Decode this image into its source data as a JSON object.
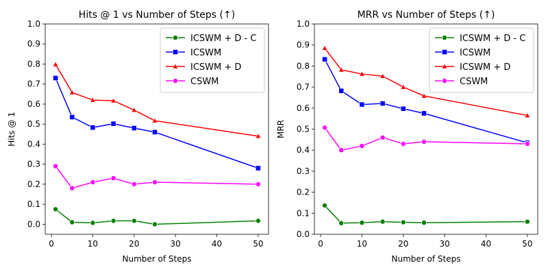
{
  "chart_data": [
    {
      "type": "line",
      "title": "Hits @ 1 vs Number of Steps (↑)",
      "xlabel": "Number of Steps",
      "ylabel": "Hits @ 1",
      "xlim": [
        -1.5,
        52.5
      ],
      "ylim": [
        -0.05,
        1.0
      ],
      "xticks": [
        0,
        10,
        20,
        30,
        40,
        50
      ],
      "xtick_labels": [
        "0",
        "10",
        "20",
        "30",
        "40",
        "50"
      ],
      "yticks": [
        0.0,
        0.1,
        0.2,
        0.3,
        0.4,
        0.5,
        0.6,
        0.7,
        0.8,
        0.9,
        1.0
      ],
      "ytick_labels": [
        "0.0",
        "0.1",
        "0.2",
        "0.3",
        "0.4",
        "0.5",
        "0.6",
        "0.7",
        "0.8",
        "0.9",
        "1.0"
      ],
      "legend_position": "top-right",
      "x": [
        1,
        5,
        10,
        15,
        20,
        25,
        50
      ],
      "series": [
        {
          "name": "ICSWM + D - C",
          "color": "#008000",
          "marker": "circle",
          "values": [
            0.075,
            0.01,
            0.007,
            0.017,
            0.017,
            0.0,
            0.017
          ]
        },
        {
          "name": "ICSWM",
          "color": "#0000ff",
          "marker": "square",
          "values": [
            0.73,
            0.535,
            0.483,
            0.502,
            0.48,
            0.46,
            0.28
          ]
        },
        {
          "name": "ICSWM + D",
          "color": "#ff0000",
          "marker": "triangle",
          "values": [
            0.798,
            0.658,
            0.62,
            0.617,
            0.57,
            0.517,
            0.44
          ]
        },
        {
          "name": "CSWM",
          "color": "#ff00ff",
          "marker": "circle",
          "values": [
            0.29,
            0.18,
            0.21,
            0.23,
            0.2,
            0.21,
            0.2
          ]
        }
      ]
    },
    {
      "type": "line",
      "title": "MRR vs Number of Steps (↑)",
      "xlabel": "Number of Steps",
      "ylabel": "MRR",
      "xlim": [
        -1.5,
        52.5
      ],
      "ylim": [
        0.0,
        1.0
      ],
      "xticks": [
        0,
        10,
        20,
        30,
        40,
        50
      ],
      "xtick_labels": [
        "0",
        "10",
        "20",
        "30",
        "40",
        "50"
      ],
      "yticks": [
        0.0,
        0.1,
        0.2,
        0.3,
        0.4,
        0.5,
        0.6,
        0.7,
        0.8,
        0.9,
        1.0
      ],
      "ytick_labels": [
        "0.0",
        "0.1",
        "0.2",
        "0.3",
        "0.4",
        "0.5",
        "0.6",
        "0.7",
        "0.8",
        "0.9",
        "1.0"
      ],
      "legend_position": "top-right",
      "x": [
        1,
        5,
        10,
        15,
        20,
        25,
        50
      ],
      "series": [
        {
          "name": "ICSWM + D - C",
          "color": "#008000",
          "marker": "circle",
          "values": [
            0.137,
            0.053,
            0.055,
            0.06,
            0.057,
            0.055,
            0.06
          ]
        },
        {
          "name": "ICSWM",
          "color": "#0000ff",
          "marker": "square",
          "values": [
            0.832,
            0.682,
            0.617,
            0.622,
            0.597,
            0.575,
            0.435
          ]
        },
        {
          "name": "ICSWM + D",
          "color": "#ff0000",
          "marker": "triangle",
          "values": [
            0.885,
            0.782,
            0.762,
            0.752,
            0.7,
            0.658,
            0.565
          ]
        },
        {
          "name": "CSWM",
          "color": "#ff00ff",
          "marker": "circle",
          "values": [
            0.507,
            0.4,
            0.42,
            0.46,
            0.43,
            0.44,
            0.43
          ]
        }
      ]
    }
  ]
}
